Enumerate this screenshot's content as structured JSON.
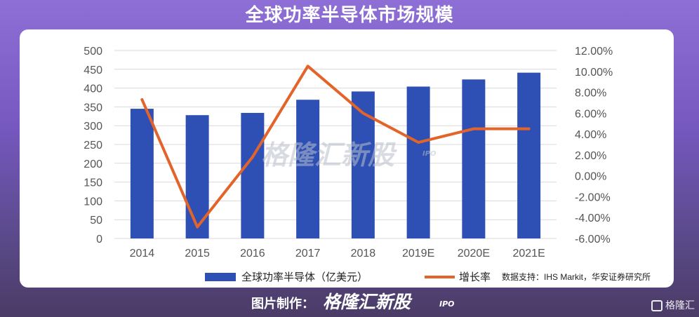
{
  "header": {
    "title": "全球功率半导体市场规模"
  },
  "footer": {
    "made_by_label": "图片制作：",
    "brand": "格隆汇新股",
    "brand_suffix": "IPO",
    "corner_logo": "格隆汇"
  },
  "watermark": {
    "text": "格隆汇新股",
    "suffix": "IPO"
  },
  "chart_data": {
    "type": "bar",
    "categories": [
      "2014",
      "2015",
      "2016",
      "2017",
      "2018",
      "2019E",
      "2020E",
      "2021E"
    ],
    "series": [
      {
        "name": "全球功率半导体（亿美元）",
        "type": "bar",
        "axis": "left",
        "color": "#2e50b5",
        "values": [
          345,
          328,
          334,
          369,
          391,
          404,
          423,
          441
        ]
      },
      {
        "name": "增长率",
        "type": "line",
        "axis": "right",
        "color": "#e2642b",
        "values": [
          7.3,
          -4.9,
          1.8,
          10.5,
          6.0,
          3.2,
          4.5,
          4.5
        ]
      }
    ],
    "y_left": {
      "min": 0,
      "max": 500,
      "ticks": [
        "0",
        "50",
        "100",
        "150",
        "200",
        "250",
        "300",
        "350",
        "400",
        "450",
        "500"
      ]
    },
    "y_right": {
      "min": -6,
      "max": 12,
      "ticks": [
        "-6.00%",
        "-4.00%",
        "-2.00%",
        "0.00%",
        "2.00%",
        "4.00%",
        "6.00%",
        "8.00%",
        "10.00%",
        "12.00%"
      ]
    },
    "grid": true,
    "legend_position": "bottom",
    "source_note": "数据支持：IHS Markit，华安证券研究所"
  }
}
